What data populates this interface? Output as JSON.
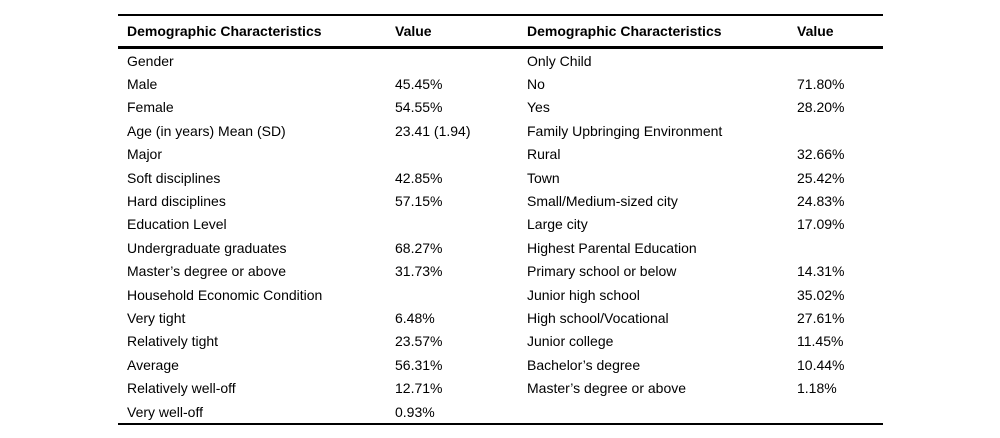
{
  "table": {
    "header": {
      "col1": "Demographic Characteristics",
      "col2": "Value",
      "col3": "Demographic Characteristics",
      "col4": "Value"
    },
    "rows": [
      {
        "c0": "Gender",
        "c1": "",
        "c2": "Only Child",
        "c3": ""
      },
      {
        "c0": "Male",
        "c1": "45.45%",
        "c2": "No",
        "c3": "71.80%"
      },
      {
        "c0": "Female",
        "c1": "54.55%",
        "c2": "Yes",
        "c3": "28.20%"
      },
      {
        "c0": "Age (in years) Mean (SD)",
        "c1": "23.41 (1.94)",
        "c2": "Family Upbringing Environment",
        "c3": ""
      },
      {
        "c0": "Major",
        "c1": "",
        "c2": "Rural",
        "c3": "32.66%"
      },
      {
        "c0": "Soft disciplines",
        "c1": "42.85%",
        "c2": "Town",
        "c3": "25.42%"
      },
      {
        "c0": "Hard disciplines",
        "c1": "57.15%",
        "c2": "Small/Medium-sized city",
        "c3": "24.83%"
      },
      {
        "c0": "Education Level",
        "c1": "",
        "c2": "Large city",
        "c3": "17.09%"
      },
      {
        "c0": "Undergraduate graduates",
        "c1": "68.27%",
        "c2": "Highest Parental Education",
        "c3": ""
      },
      {
        "c0": "Master’s degree or above",
        "c1": "31.73%",
        "c2": "Primary school or below",
        "c3": "14.31%"
      },
      {
        "c0": "Household Economic Condition",
        "c1": "",
        "c2": "Junior high school",
        "c3": "35.02%"
      },
      {
        "c0": "Very tight",
        "c1": "6.48%",
        "c2": "High school/Vocational",
        "c3": "27.61%"
      },
      {
        "c0": "Relatively tight",
        "c1": "23.57%",
        "c2": "Junior college",
        "c3": "11.45%"
      },
      {
        "c0": "Average",
        "c1": "56.31%",
        "c2": "Bachelor’s degree",
        "c3": "10.44%"
      },
      {
        "c0": "Relatively well-off",
        "c1": "12.71%",
        "c2": "Master’s degree or above",
        "c3": "1.18%"
      },
      {
        "c0": "Very well-off",
        "c1": "0.93%",
        "c2": "",
        "c3": ""
      }
    ]
  }
}
